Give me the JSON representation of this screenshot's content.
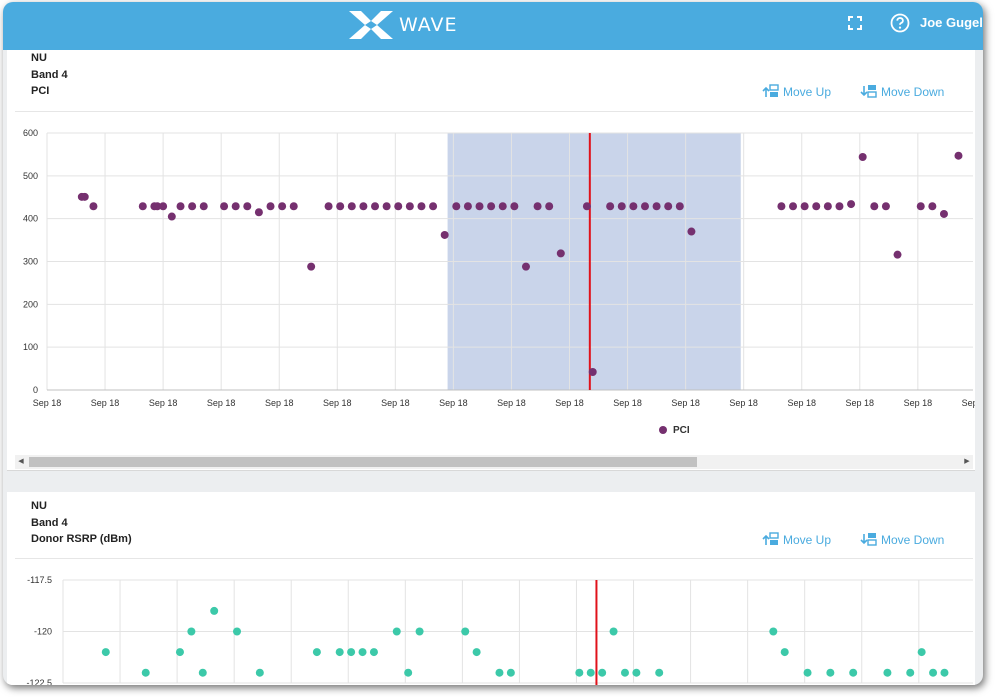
{
  "app": {
    "logo_text": "WAVE",
    "user_name": "Joe Gugel",
    "colors": {
      "header": "#4aabdf",
      "accent": "#4aabdf"
    }
  },
  "panels": [
    {
      "title_lines": [
        "NU",
        "Band 4",
        "PCI"
      ],
      "move_up_label": "Move Up",
      "move_down_label": "Move Down"
    },
    {
      "title_lines": [
        "NU",
        "Band 4",
        "Donor RSRP  (dBm)"
      ],
      "move_up_label": "Move Up",
      "move_down_label": "Move Down"
    }
  ],
  "chart_data": [
    {
      "type": "scatter",
      "title": "",
      "series": [
        {
          "name": "PCI",
          "color": "#75306f",
          "points": [
            [
              0.6,
              451
            ],
            [
              0.65,
              451
            ],
            [
              0.8,
              429
            ],
            [
              1.65,
              429
            ],
            [
              1.85,
              429
            ],
            [
              1.9,
              429
            ],
            [
              2.0,
              429
            ],
            [
              2.15,
              405
            ],
            [
              2.3,
              429
            ],
            [
              2.5,
              429
            ],
            [
              2.7,
              429
            ],
            [
              3.05,
              429
            ],
            [
              3.25,
              429
            ],
            [
              3.45,
              429
            ],
            [
              3.65,
              415
            ],
            [
              3.85,
              429
            ],
            [
              4.05,
              429
            ],
            [
              4.25,
              429
            ],
            [
              4.55,
              288
            ],
            [
              4.85,
              429
            ],
            [
              5.05,
              429
            ],
            [
              5.25,
              429
            ],
            [
              5.45,
              429
            ],
            [
              5.65,
              429
            ],
            [
              5.85,
              429
            ],
            [
              6.05,
              429
            ],
            [
              6.25,
              429
            ],
            [
              6.45,
              429
            ],
            [
              6.65,
              429
            ],
            [
              6.85,
              362
            ],
            [
              7.05,
              429
            ],
            [
              7.25,
              429
            ],
            [
              7.45,
              429
            ],
            [
              7.65,
              429
            ],
            [
              7.85,
              429
            ],
            [
              8.05,
              429
            ],
            [
              8.25,
              288
            ],
            [
              8.45,
              429
            ],
            [
              8.65,
              429
            ],
            [
              8.85,
              319
            ],
            [
              9.3,
              429
            ],
            [
              9.4,
              42
            ],
            [
              9.7,
              429
            ],
            [
              9.9,
              429
            ],
            [
              10.1,
              429
            ],
            [
              10.3,
              429
            ],
            [
              10.5,
              429
            ],
            [
              10.7,
              429
            ],
            [
              10.9,
              429
            ],
            [
              11.1,
              370
            ],
            [
              12.65,
              429
            ],
            [
              12.85,
              429
            ],
            [
              13.05,
              429
            ],
            [
              13.25,
              429
            ],
            [
              13.45,
              429
            ],
            [
              13.65,
              429
            ],
            [
              13.85,
              434
            ],
            [
              14.05,
              544
            ],
            [
              14.25,
              429
            ],
            [
              14.45,
              429
            ],
            [
              14.65,
              316
            ],
            [
              15.05,
              429
            ],
            [
              15.25,
              429
            ],
            [
              15.45,
              411
            ],
            [
              15.7,
              547
            ]
          ]
        }
      ],
      "x_tick_labels": [
        "Sep 18",
        "Sep 18",
        "Sep 18",
        "Sep 18",
        "Sep 18",
        "Sep 18",
        "Sep 18",
        "Sep 18",
        "Sep 18",
        "Sep 18",
        "Sep 18",
        "Sep 18",
        "Sep 18",
        "Sep 18",
        "Sep 18",
        "Sep 18",
        "Sep 18",
        "S"
      ],
      "xlim": [
        0,
        15.95
      ],
      "ylim": [
        0,
        600
      ],
      "y_ticks": [
        0,
        100,
        200,
        300,
        400,
        500,
        600
      ],
      "highlight_band": {
        "x_start": 6.9,
        "x_end": 11.95,
        "color": "#c9d4ea"
      },
      "marker_line": {
        "x": 9.35,
        "color": "#e0121b"
      },
      "legend": "bottom-center",
      "grid": true
    },
    {
      "type": "scatter",
      "title": "",
      "series": [
        {
          "name": "",
          "color": "#3cc9a9",
          "points": [
            [
              0.75,
              -121
            ],
            [
              1.45,
              -122
            ],
            [
              2.05,
              -121
            ],
            [
              2.25,
              -120
            ],
            [
              2.45,
              -122
            ],
            [
              2.65,
              -119
            ],
            [
              3.05,
              -120
            ],
            [
              3.45,
              -122
            ],
            [
              4.45,
              -121
            ],
            [
              4.85,
              -121
            ],
            [
              5.05,
              -121
            ],
            [
              5.25,
              -121
            ],
            [
              5.45,
              -121
            ],
            [
              5.85,
              -120
            ],
            [
              6.05,
              -122
            ],
            [
              6.25,
              -120
            ],
            [
              7.05,
              -120
            ],
            [
              7.25,
              -121
            ],
            [
              7.65,
              -122
            ],
            [
              7.85,
              -122
            ],
            [
              9.05,
              -122
            ],
            [
              9.25,
              -122
            ],
            [
              9.45,
              -122
            ],
            [
              9.65,
              -120
            ],
            [
              9.85,
              -122
            ],
            [
              10.05,
              -122
            ],
            [
              10.45,
              -122
            ],
            [
              12.45,
              -120
            ],
            [
              12.65,
              -121
            ],
            [
              13.05,
              -122
            ],
            [
              13.45,
              -122
            ],
            [
              13.85,
              -122
            ],
            [
              14.45,
              -122
            ],
            [
              14.85,
              -122
            ],
            [
              15.05,
              -121
            ],
            [
              15.25,
              -122
            ],
            [
              15.45,
              -122
            ]
          ]
        }
      ],
      "xlim": [
        0,
        15.95
      ],
      "ylim": [
        -122.5,
        -117.5
      ],
      "y_tick_labels": [
        "-117.5",
        "-120",
        "-122.5"
      ],
      "y_tick_values": [
        -117.5,
        -120,
        -122.5
      ],
      "marker_line": {
        "x": 9.35,
        "color": "#e0121b"
      },
      "grid": true
    }
  ]
}
